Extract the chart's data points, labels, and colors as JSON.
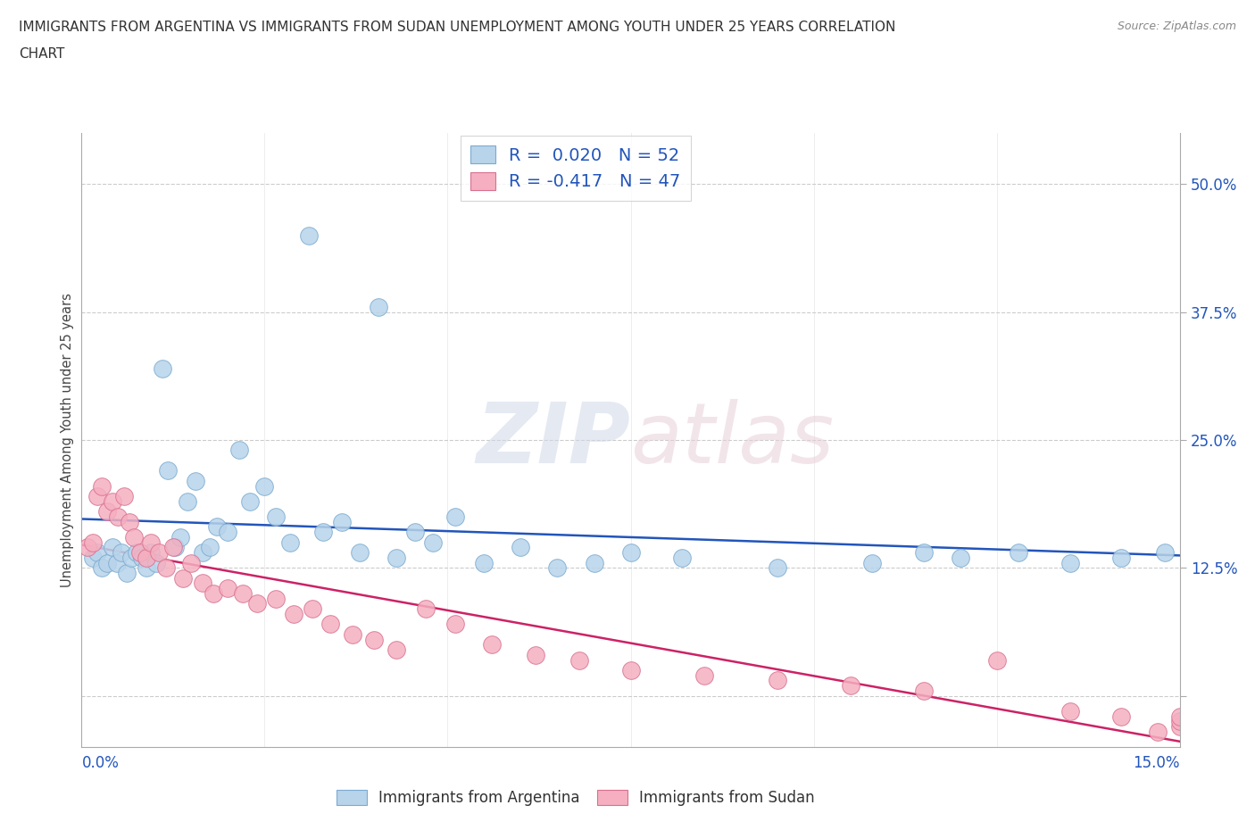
{
  "title_line1": "IMMIGRANTS FROM ARGENTINA VS IMMIGRANTS FROM SUDAN UNEMPLOYMENT AMONG YOUTH UNDER 25 YEARS CORRELATION",
  "title_line2": "CHART",
  "source": "Source: ZipAtlas.com",
  "ylabel": "Unemployment Among Youth under 25 years",
  "xlim": [
    0.0,
    15.0
  ],
  "ylim": [
    -5.0,
    55.0
  ],
  "y_ticks": [
    0.0,
    12.5,
    25.0,
    37.5,
    50.0
  ],
  "y_tick_labels": [
    "",
    "12.5%",
    "25.0%",
    "37.5%",
    "50.0%"
  ],
  "argentina_color": "#b8d4ea",
  "argentina_edge": "#7aaad0",
  "sudan_color": "#f5afc0",
  "sudan_edge": "#d87090",
  "trend_argentina_color": "#2255bb",
  "trend_sudan_color": "#cc2266",
  "axis_label_color": "#2255bb",
  "legend_R_color": "#2255bb",
  "watermark_color": "#d0d8e8",
  "watermark_color2": "#e8d0d8",
  "argentina_x": [
    0.15,
    0.22,
    0.28,
    0.35,
    0.42,
    0.48,
    0.55,
    0.62,
    0.68,
    0.75,
    0.82,
    0.88,
    0.95,
    1.02,
    1.1,
    1.18,
    1.28,
    1.35,
    1.45,
    1.55,
    1.65,
    1.75,
    1.85,
    2.0,
    2.15,
    2.3,
    2.5,
    2.65,
    2.85,
    3.1,
    3.3,
    3.55,
    3.8,
    4.05,
    4.3,
    4.55,
    4.8,
    5.1,
    5.5,
    6.0,
    6.5,
    7.0,
    7.5,
    8.2,
    9.5,
    10.8,
    11.5,
    12.0,
    12.8,
    13.5,
    14.2,
    14.8
  ],
  "argentina_y": [
    13.5,
    14.0,
    12.5,
    13.0,
    14.5,
    13.0,
    14.0,
    12.0,
    13.5,
    14.0,
    13.5,
    12.5,
    14.0,
    13.0,
    32.0,
    22.0,
    14.5,
    15.5,
    19.0,
    21.0,
    14.0,
    14.5,
    16.5,
    16.0,
    24.0,
    19.0,
    20.5,
    17.5,
    15.0,
    45.0,
    16.0,
    17.0,
    14.0,
    38.0,
    13.5,
    16.0,
    15.0,
    17.5,
    13.0,
    14.5,
    12.5,
    13.0,
    14.0,
    13.5,
    12.5,
    13.0,
    14.0,
    13.5,
    14.0,
    13.0,
    13.5,
    14.0
  ],
  "sudan_x": [
    0.08,
    0.15,
    0.22,
    0.28,
    0.35,
    0.42,
    0.5,
    0.58,
    0.65,
    0.72,
    0.8,
    0.88,
    0.95,
    1.05,
    1.15,
    1.25,
    1.38,
    1.5,
    1.65,
    1.8,
    2.0,
    2.2,
    2.4,
    2.65,
    2.9,
    3.15,
    3.4,
    3.7,
    4.0,
    4.3,
    4.7,
    5.1,
    5.6,
    6.2,
    6.8,
    7.5,
    8.5,
    9.5,
    10.5,
    11.5,
    12.5,
    13.5,
    14.2,
    14.7,
    15.0,
    15.0,
    15.0
  ],
  "sudan_y": [
    14.5,
    15.0,
    19.5,
    20.5,
    18.0,
    19.0,
    17.5,
    19.5,
    17.0,
    15.5,
    14.0,
    13.5,
    15.0,
    14.0,
    12.5,
    14.5,
    11.5,
    13.0,
    11.0,
    10.0,
    10.5,
    10.0,
    9.0,
    9.5,
    8.0,
    8.5,
    7.0,
    6.0,
    5.5,
    4.5,
    8.5,
    7.0,
    5.0,
    4.0,
    3.5,
    2.5,
    2.0,
    1.5,
    1.0,
    0.5,
    3.5,
    -1.5,
    -2.0,
    -3.5,
    -3.0,
    -2.5,
    -2.0
  ]
}
